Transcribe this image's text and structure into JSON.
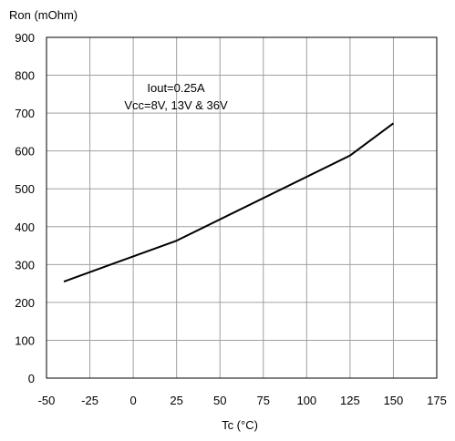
{
  "chart_data": {
    "type": "line",
    "ylabel": "Ron (mOhm)",
    "xlabel": "Tc (°C)",
    "xlim": [
      -50,
      175
    ],
    "ylim": [
      0,
      900
    ],
    "x_ticks": [
      -50,
      -25,
      0,
      25,
      50,
      75,
      100,
      125,
      150,
      175
    ],
    "y_ticks": [
      0,
      100,
      200,
      300,
      400,
      500,
      600,
      700,
      800,
      900
    ],
    "x_tick_labels": [
      "-50",
      "-25",
      "0",
      "25",
      "50",
      "75",
      "100",
      "125",
      "150",
      "175"
    ],
    "y_tick_labels": [
      "0",
      "100",
      "200",
      "300",
      "400",
      "500",
      "600",
      "700",
      "800",
      "900"
    ],
    "grid": true,
    "annotation": [
      "Iout=0.25A",
      "Vcc=8V, 13V & 36V"
    ],
    "series": [
      {
        "x": [
          -40,
          25,
          125,
          150
        ],
        "y": [
          255,
          363,
          588,
          673
        ],
        "color": "#000000"
      }
    ]
  }
}
